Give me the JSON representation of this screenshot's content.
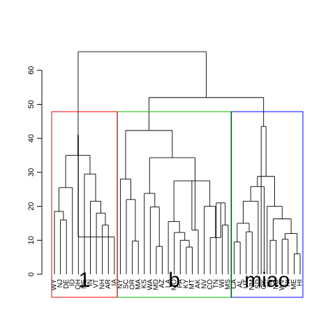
{
  "chart_data": {
    "type": "dendrogram",
    "y_axis": {
      "min": 0,
      "max": 60,
      "ticks": [
        0,
        10,
        20,
        30,
        40,
        50,
        60
      ]
    },
    "leaf_order": [
      "WY",
      "NJ",
      "DE",
      "ID",
      "OH",
      "NE",
      "IN",
      "VT",
      "NH",
      "AR",
      "IA",
      "NY",
      "SC",
      "OR",
      "MA",
      "KS",
      "WA",
      "MD",
      "AZ",
      "LA",
      "MO",
      "PA",
      "KY",
      "MT",
      "AK",
      "NV",
      "CO",
      "TN",
      "WI",
      "MS",
      "CA",
      "AL",
      "UT",
      "NM",
      "SD",
      "OK",
      "MI",
      "ND",
      "WV",
      "TX",
      "ME",
      "HI"
    ],
    "rect_groups": [
      {
        "label": "1",
        "color": "#ee0000",
        "first_leaf": 0,
        "last_leaf": 10
      },
      {
        "label": "b",
        "color": "#00bb00",
        "first_leaf": 11,
        "last_leaf": 29
      },
      {
        "label": "miao",
        "color": "#0000ff",
        "first_leaf": 30,
        "last_leaf": 41
      }
    ],
    "merges": [
      {
        "id": "a1",
        "children": [
          1,
          2
        ],
        "height": 16.0
      },
      {
        "id": "a2",
        "children": [
          0,
          "a1"
        ],
        "height": 18.5
      },
      {
        "id": "a3",
        "children": [
          3,
          "a2"
        ],
        "height": 25.5
      },
      {
        "id": "a4",
        "children": [
          8,
          9
        ],
        "height": 14.5
      },
      {
        "id": "a5",
        "children": [
          7,
          "a4"
        ],
        "height": 18.0
      },
      {
        "id": "a6",
        "children": [
          6,
          "a5"
        ],
        "height": 21.5
      },
      {
        "id": "a7",
        "children": [
          5,
          "a6"
        ],
        "height": 29.5
      },
      {
        "id": "a8",
        "children": [
          "a3",
          "a7"
        ],
        "height": 35.0
      },
      {
        "id": "a9",
        "children": [
          4,
          "a8"
        ],
        "height": 41.0
      },
      {
        "id": "a10",
        "children": [
          10,
          "a9"
        ],
        "height": 11.0
      },
      {
        "id": "b1",
        "children": [
          13,
          14
        ],
        "height": 9.8
      },
      {
        "id": "b2",
        "children": [
          12,
          "b1"
        ],
        "height": 22.0
      },
      {
        "id": "b3",
        "children": [
          11,
          "b2"
        ],
        "height": 28.0
      },
      {
        "id": "b4",
        "children": [
          17,
          18
        ],
        "height": 8.2
      },
      {
        "id": "b5",
        "children": [
          16,
          "b4"
        ],
        "height": 19.8
      },
      {
        "id": "b6",
        "children": [
          15,
          "b5"
        ],
        "height": 23.8
      },
      {
        "id": "b7",
        "children": [
          22,
          23
        ],
        "height": 8.0
      },
      {
        "id": "b8",
        "children": [
          21,
          "b7"
        ],
        "height": 10.0
      },
      {
        "id": "b9",
        "children": [
          20,
          "b8"
        ],
        "height": 12.3
      },
      {
        "id": "b10",
        "children": [
          19,
          "b9"
        ],
        "height": 15.5
      },
      {
        "id": "b11",
        "children": [
          28,
          29
        ],
        "height": 14.5
      },
      {
        "id": "b12",
        "children": [
          27,
          "b11"
        ],
        "height": 21.0
      },
      {
        "id": "b13",
        "children": [
          26,
          "b12"
        ],
        "height": 10.8
      },
      {
        "id": "b14",
        "children": [
          25,
          "b13"
        ],
        "height": 20.0
      },
      {
        "id": "b15",
        "children": [
          "b10",
          "b14"
        ],
        "height": 27.5
      },
      {
        "id": "b16",
        "children": [
          24,
          "b15"
        ],
        "height": 13.0
      },
      {
        "id": "b17",
        "children": [
          "b6",
          "b16"
        ],
        "height": 34.3
      },
      {
        "id": "b18",
        "children": [
          "b3",
          "b17"
        ],
        "height": 42.3
      },
      {
        "id": "c1",
        "children": [
          30,
          31
        ],
        "height": 9.5
      },
      {
        "id": "c2",
        "children": [
          32,
          33
        ],
        "height": 12.5
      },
      {
        "id": "c3",
        "children": [
          "c1",
          "c2"
        ],
        "height": 15.0
      },
      {
        "id": "c4",
        "children": [
          "c3",
          34
        ],
        "height": 21.5
      },
      {
        "id": "c5",
        "children": [
          "c4",
          35
        ],
        "height": 25.8
      },
      {
        "id": "c6",
        "children": [
          36,
          37
        ],
        "height": 10.0
      },
      {
        "id": "c7",
        "children": [
          38,
          39
        ],
        "height": 10.3
      },
      {
        "id": "c8",
        "children": [
          40,
          41
        ],
        "height": 6.0
      },
      {
        "id": "c9",
        "children": [
          "c7",
          "c8"
        ],
        "height": 12.0
      },
      {
        "id": "c10",
        "children": [
          "c6",
          "c9"
        ],
        "height": 16.3
      },
      {
        "id": "c11",
        "children": [
          "c10",
          35.5
        ],
        "height": 20.0
      },
      {
        "id": "c12",
        "children": [
          "c5",
          "c11"
        ],
        "height": 28.8
      },
      {
        "id": "c13",
        "children": [
          "c12",
          34.5
        ],
        "height": 43.5
      },
      {
        "id": "r1",
        "children": [
          "b18",
          "c13"
        ],
        "height": 52.0
      },
      {
        "id": "root",
        "children": [
          "a9",
          "r1"
        ],
        "height": 65.5
      }
    ]
  }
}
